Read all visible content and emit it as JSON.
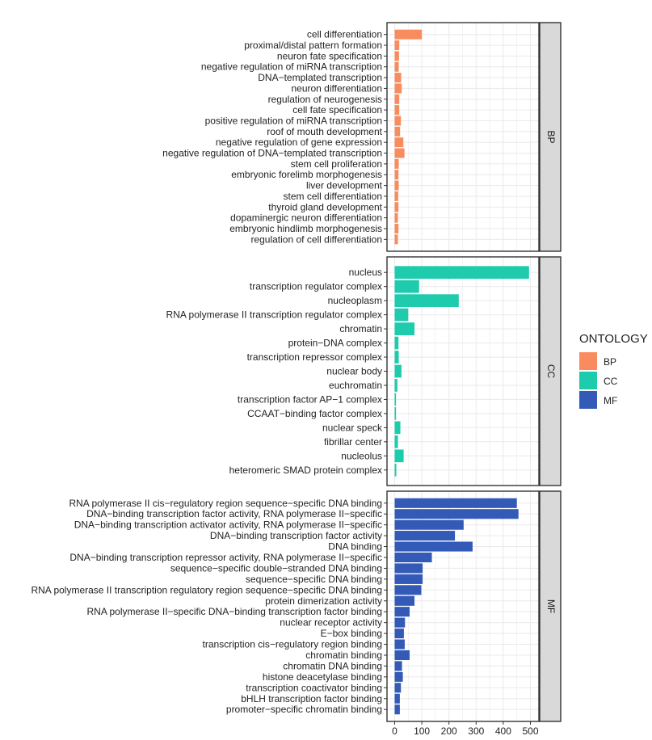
{
  "chart_data": {
    "type": "bar",
    "orientation": "horizontal",
    "facet_variable": "ONTOLOGY",
    "x_ticks": [
      0,
      100,
      200,
      300,
      400,
      500
    ],
    "xlim": [
      0,
      520
    ],
    "grid": true,
    "legend": {
      "title": "ONTOLOGY",
      "placement": "right",
      "entries": [
        {
          "label": "BP",
          "color": "#F98C5F"
        },
        {
          "label": "CC",
          "color": "#1ECBAC"
        },
        {
          "label": "MF",
          "color": "#345AB8"
        }
      ]
    },
    "panels": [
      {
        "name": "BP",
        "color": "#F98C5F",
        "categories": [
          "cell differentiation",
          "proximal/distal pattern formation",
          "neuron fate specification",
          "negative regulation of miRNA transcription",
          "DNA−templated transcription",
          "neuron differentiation",
          "regulation of neurogenesis",
          "cell fate specification",
          "positive regulation of miRNA transcription",
          "roof of mouth development",
          "negative regulation of gene expression",
          "negative regulation of DNA−templated transcription",
          "stem cell proliferation",
          "embryonic forelimb morphogenesis",
          "liver development",
          "stem cell differentiation",
          "thyroid gland development",
          "dopaminergic neuron differentiation",
          "embryonic hindlimb morphogenesis",
          "regulation of cell differentiation"
        ],
        "values": [
          100,
          17,
          16,
          15,
          24,
          26,
          17,
          17,
          23,
          20,
          32,
          36,
          15,
          14,
          15,
          13,
          14,
          12,
          14,
          12
        ]
      },
      {
        "name": "CC",
        "color": "#1ECBAC",
        "categories": [
          "nucleus",
          "transcription regulator complex",
          "nucleoplasm",
          "RNA polymerase II transcription regulator complex",
          "chromatin",
          "protein−DNA complex",
          "transcription repressor complex",
          "nuclear body",
          "euchromatin",
          "transcription factor AP−1 complex",
          "CCAAT−binding factor complex",
          "nuclear speck",
          "fibrillar center",
          "nucleolus",
          "heteromeric SMAD protein complex"
        ],
        "values": [
          495,
          90,
          236,
          50,
          73,
          14,
          15,
          25,
          10,
          5,
          5,
          21,
          12,
          33,
          6
        ]
      },
      {
        "name": "MF",
        "color": "#345AB8",
        "categories": [
          "RNA polymerase II cis−regulatory region sequence−specific DNA binding",
          "DNA−binding transcription factor activity, RNA polymerase II−specific",
          "DNA−binding transcription activator activity, RNA polymerase II−specific",
          "DNA−binding transcription factor activity",
          "DNA binding",
          "DNA−binding transcription repressor activity, RNA polymerase II−specific",
          "sequence−specific double−stranded DNA binding",
          "sequence−specific DNA binding",
          "RNA polymerase II transcription regulatory region sequence−specific DNA binding",
          "protein dimerization activity",
          "RNA polymerase II−specific DNA−binding transcription factor binding",
          "nuclear receptor activity",
          "E−box binding",
          "transcription cis−regulatory region binding",
          "chromatin binding",
          "chromatin DNA binding",
          "histone deacetylase binding",
          "transcription coactivator binding",
          "bHLH transcription factor binding",
          "promoter−specific chromatin binding"
        ],
        "values": [
          450,
          456,
          254,
          222,
          287,
          137,
          103,
          103,
          98,
          73,
          55,
          38,
          34,
          37,
          55,
          27,
          30,
          23,
          19,
          19
        ]
      }
    ]
  }
}
